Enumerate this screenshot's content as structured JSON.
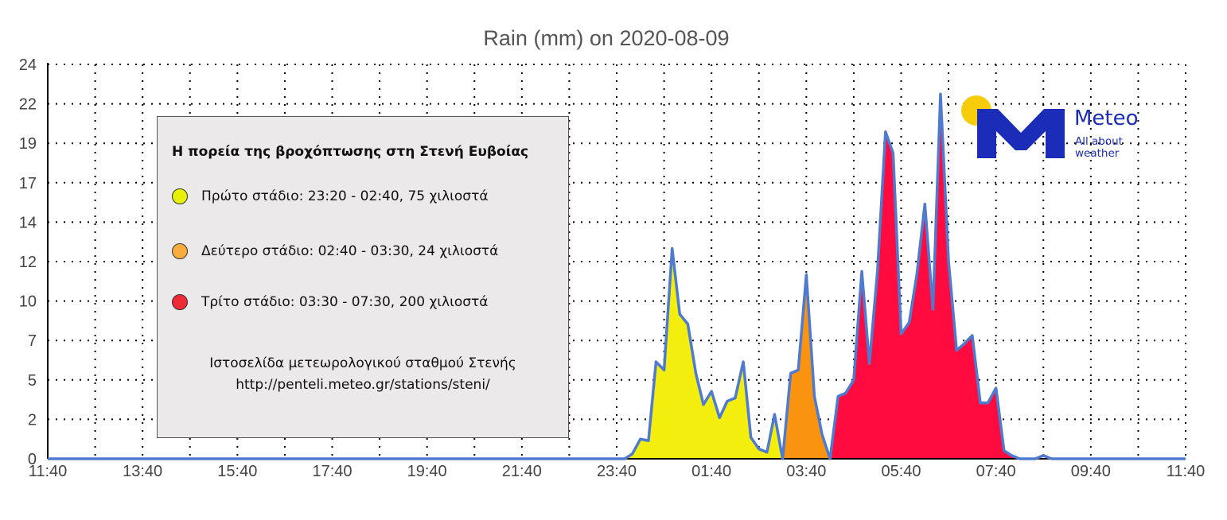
{
  "chart_data": {
    "type": "area",
    "title": "Rain (mm) on 2020-08-09",
    "xlabel": "",
    "ylabel": "",
    "x_tick_labels": [
      "11:40",
      "13:40",
      "15:40",
      "17:40",
      "19:40",
      "21:40",
      "23:40",
      "01:40",
      "03:40",
      "05:40",
      "07:40",
      "09:40",
      "11:40"
    ],
    "y_tick_labels": [
      "0",
      "2",
      "5",
      "7",
      "10",
      "12",
      "14",
      "17",
      "19",
      "22",
      "24"
    ],
    "ylim": [
      0,
      24
    ],
    "x_range_hours": [
      0,
      24
    ],
    "grid": true,
    "series": [
      {
        "stage": "first",
        "color": "#f4ee0f",
        "points": [
          [
            0,
            0
          ],
          [
            12.17,
            0
          ],
          [
            12.33,
            0.3
          ],
          [
            12.5,
            1.2
          ],
          [
            12.67,
            1.1
          ],
          [
            12.83,
            5.9
          ],
          [
            13,
            5.4
          ],
          [
            13.17,
            12.8
          ],
          [
            13.33,
            8.8
          ],
          [
            13.5,
            8.2
          ],
          [
            13.67,
            5.2
          ],
          [
            13.83,
            3.3
          ],
          [
            14,
            4.1
          ],
          [
            14.17,
            2.5
          ],
          [
            14.33,
            3.5
          ],
          [
            14.5,
            3.7
          ],
          [
            14.67,
            5.9
          ],
          [
            14.83,
            1.3
          ],
          [
            15,
            0.6
          ],
          [
            15.17,
            0.4
          ],
          [
            15.33,
            2.7
          ],
          [
            15.5,
            0
          ],
          [
            15.5,
            0
          ]
        ]
      },
      {
        "stage": "second",
        "color": "#fa9410",
        "points": [
          [
            15.5,
            0
          ],
          [
            15.67,
            5.2
          ],
          [
            15.83,
            5.4
          ],
          [
            16,
            11.2
          ],
          [
            16.17,
            3.8
          ],
          [
            16.33,
            1.5
          ],
          [
            16.5,
            0
          ]
        ]
      },
      {
        "stage": "third",
        "color": "#ff0b3f",
        "points": [
          [
            16.5,
            0
          ],
          [
            16.67,
            3.8
          ],
          [
            16.83,
            4
          ],
          [
            17,
            4.8
          ],
          [
            17.17,
            11.4
          ],
          [
            17.33,
            5.8
          ],
          [
            17.5,
            11.4
          ],
          [
            17.67,
            19.9
          ],
          [
            17.83,
            18.6
          ],
          [
            18,
            7.6
          ],
          [
            18.17,
            8.3
          ],
          [
            18.33,
            11.2
          ],
          [
            18.5,
            15.5
          ],
          [
            18.67,
            9.1
          ],
          [
            18.83,
            22.2
          ],
          [
            19,
            12
          ],
          [
            19.17,
            6.6
          ],
          [
            19.33,
            7
          ],
          [
            19.5,
            7.5
          ],
          [
            19.67,
            3.4
          ],
          [
            19.83,
            3.4
          ],
          [
            20,
            4.3
          ],
          [
            20.17,
            0.5
          ],
          [
            20.33,
            0.2
          ],
          [
            20.5,
            0
          ]
        ]
      }
    ],
    "outline_tail": [
      [
        20.5,
        0
      ],
      [
        20.83,
        0
      ],
      [
        21,
        0.2
      ],
      [
        21.17,
        0
      ],
      [
        24,
        0
      ]
    ],
    "line_color": "#4e7bd0"
  },
  "legend": {
    "title": "Η πορεία της βροχόπτωσης στη Στενή Ευβοίας",
    "items": [
      {
        "label": "Πρώτο στάδιο: 23:20 - 02:40, 75 χιλιοστά",
        "color": "#e8f005"
      },
      {
        "label": "Δεύτερο στάδιο: 02:40 - 03:30, 24 χιλιοστά",
        "color": "#f9ad3c"
      },
      {
        "label": "Τρίτο στάδιο: 03:30 - 07:30, 200 χιλιοστά",
        "color": "#ee2a36"
      }
    ],
    "footer_line1": "Ιστοσελίδα μετεωρολογικού σταθμού Στενής",
    "footer_line2": "http://penteli.meteo.gr/stations/steni/"
  },
  "logo": {
    "name": "Meteo",
    "tagline": "All about weather",
    "brand_color": "#1a2cb8",
    "sun_color": "#f7cd0b"
  }
}
